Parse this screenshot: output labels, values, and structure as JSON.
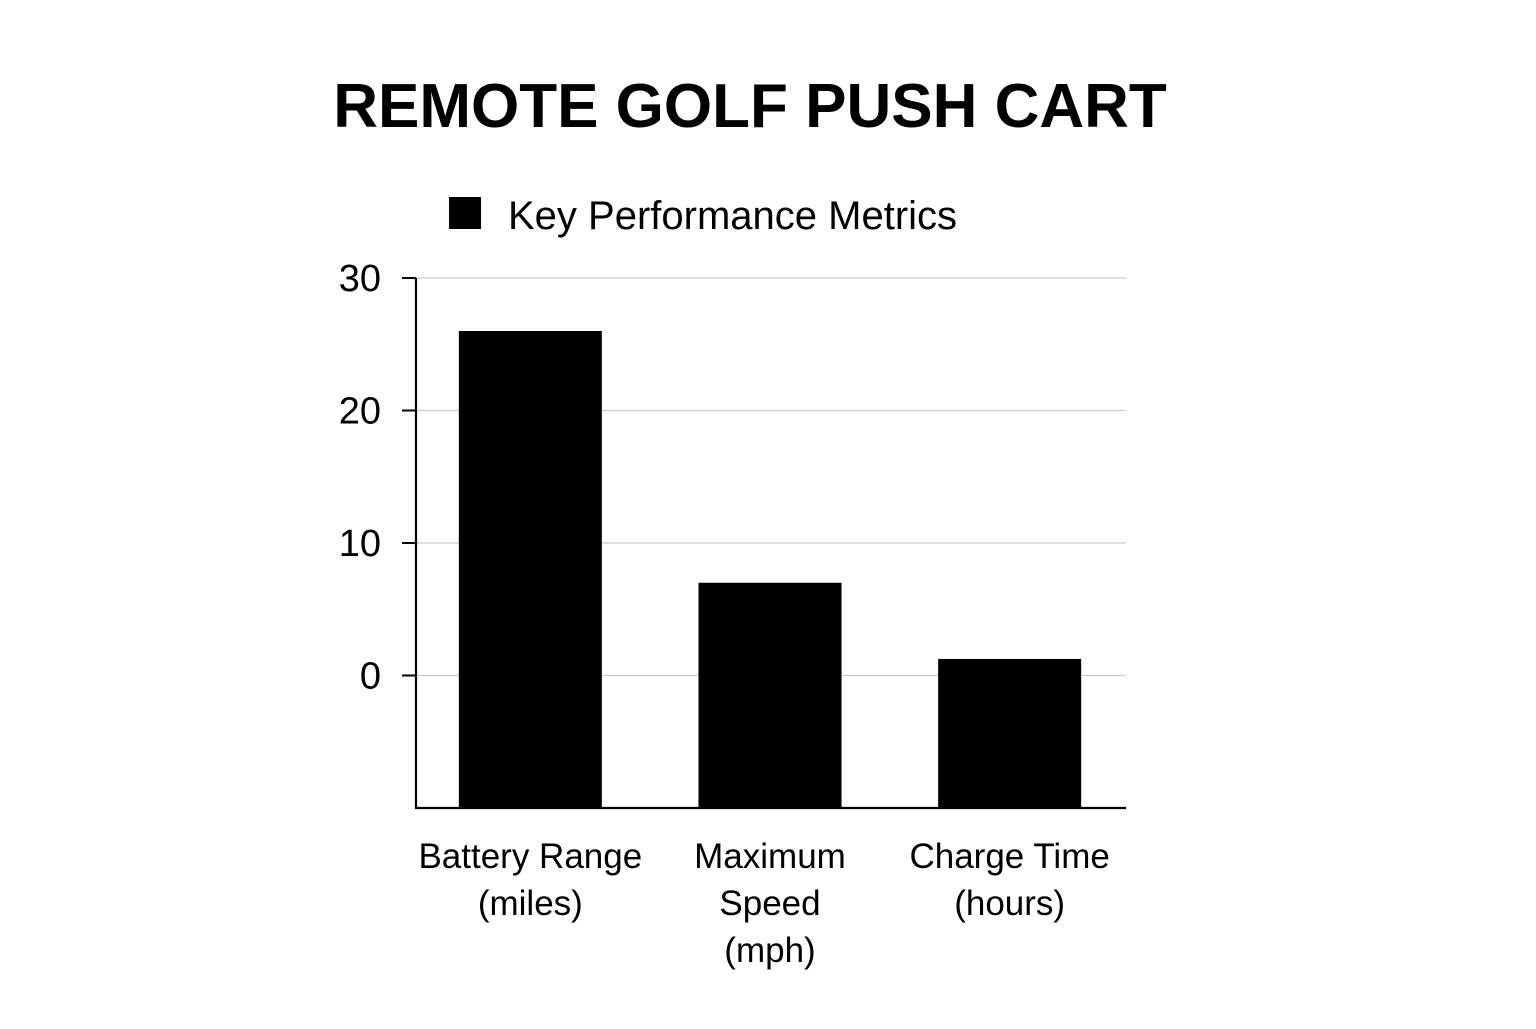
{
  "chart_data": {
    "type": "bar",
    "title": "REMOTE GOLF PUSH CART",
    "legend": {
      "entries": [
        "Key Performance Metrics"
      ],
      "placement": "top"
    },
    "categories": [
      [
        "Battery Range",
        "(miles)"
      ],
      [
        "Maximum",
        "Speed",
        "(mph)"
      ],
      [
        "Charge Time",
        "(hours)"
      ]
    ],
    "series": [
      {
        "name": "Key Performance Metrics",
        "values": [
          26,
          7,
          1.25
        ]
      }
    ],
    "y_ticks": [
      "0",
      "10",
      "20",
      "30"
    ],
    "y_tick_values": [
      0,
      10,
      20,
      30
    ],
    "ylim": [
      -10,
      30
    ],
    "grid": true,
    "colors": {
      "bar": "#000000",
      "grid": "#cccccc",
      "axis": "#000000",
      "text": "#000000"
    }
  }
}
